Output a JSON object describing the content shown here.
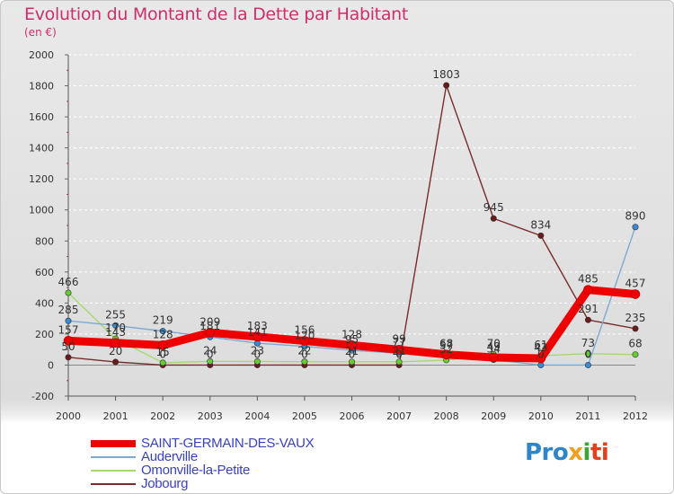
{
  "title": "Evolution du Montant de la Dette par Habitant",
  "subtitle": "(en €)",
  "logo": {
    "parts": [
      "Pro",
      "x",
      "i",
      "ti"
    ]
  },
  "chart_data": {
    "type": "line",
    "title": "Evolution du Montant de la Dette par Habitant",
    "ylabel": "(en €)",
    "xlabel": "",
    "categories": [
      "2000",
      "2001",
      "2002",
      "2003",
      "2004",
      "2005",
      "2006",
      "2007",
      "2008",
      "2009",
      "2010",
      "2011",
      "2012"
    ],
    "ylim": [
      -200,
      2000
    ],
    "yticks": [
      -200,
      0,
      200,
      400,
      600,
      800,
      1000,
      1200,
      1400,
      1600,
      1800,
      2000
    ],
    "grid": true,
    "legend_position": "bottom-left",
    "series": [
      {
        "name": "SAINT-GERMAIN-DES-VAUX",
        "color": "#ee0000",
        "marker_color": "#ee0000",
        "weight": "thick",
        "values": [
          157,
          143,
          128,
          209,
          183,
          156,
          128,
          99,
          68,
          49,
          43,
          485,
          457
        ],
        "labels": [
          "157",
          "143",
          "128",
          "209",
          "183",
          "156",
          "128",
          "99",
          "68",
          "49",
          "43",
          "485",
          "457"
        ]
      },
      {
        "name": "Auderville",
        "color": "#7fa8d0",
        "marker_color": "#3a8ad0",
        "weight": "thin",
        "values": [
          285,
          255,
          219,
          181,
          141,
          120,
          95,
          77,
          57,
          34,
          0,
          0,
          890
        ],
        "labels": [
          "285",
          "255",
          "219",
          "181",
          "141",
          "120",
          "95",
          "77",
          "57",
          "34",
          "0",
          "0",
          "890"
        ]
      },
      {
        "name": "Omonville-la-Petite",
        "color": "#a6d870",
        "marker_color": "#66cc33",
        "weight": "thin",
        "values": [
          466,
          170,
          15,
          24,
          23,
          22,
          21,
          21,
          32,
          70,
          61,
          73,
          68
        ],
        "labels": [
          "466",
          "170",
          "15",
          "24",
          "23",
          "22",
          "21",
          "21",
          "32",
          "70",
          "61",
          "73",
          "68"
        ]
      },
      {
        "name": "Jobourg",
        "color": "#7a2a2a",
        "marker_color": "#6a1a1a",
        "weight": "thin",
        "values": [
          50,
          20,
          0,
          0,
          0,
          0,
          0,
          0,
          1803,
          945,
          834,
          291,
          235
        ],
        "labels": [
          "50",
          "20",
          "0",
          "0",
          "0",
          "0",
          "0",
          "0",
          "1803",
          "945",
          "834",
          "291",
          "235"
        ]
      }
    ]
  }
}
